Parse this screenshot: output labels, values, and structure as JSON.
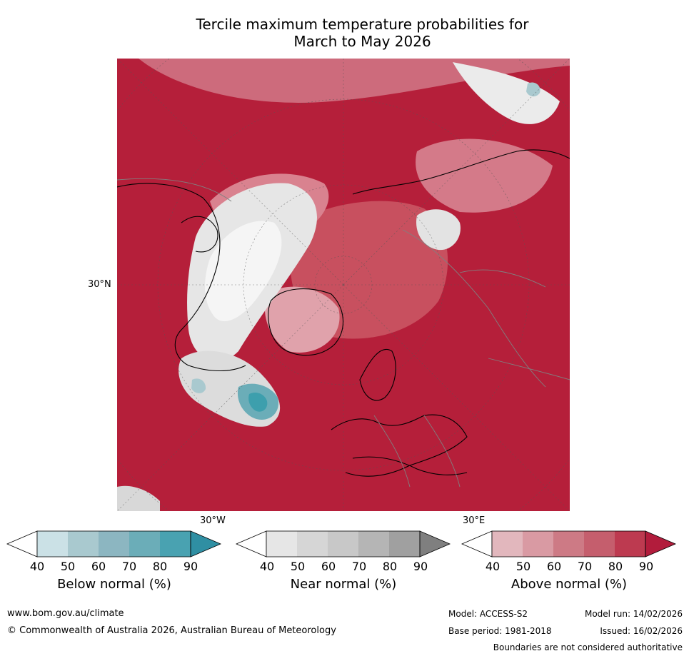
{
  "title": {
    "line1": "Tercile maximum temperature probabilities for",
    "line2": "March to May 2026"
  },
  "map": {
    "projection": "north-polar-stereographic",
    "labels": {
      "lat_30n": "30°N",
      "lon_30w": "30°W",
      "lon_30e": "30°E"
    },
    "colors": {
      "above_strong": "#b51f3a",
      "above_mid": "#c84a60",
      "above_light": "#d9828f",
      "near": "#e0e0e0",
      "below": "#3d9fad"
    }
  },
  "colorbars": [
    {
      "title": "Below normal (%)",
      "ticks": [
        "40",
        "50",
        "60",
        "70",
        "80",
        "90"
      ],
      "colors": [
        "#ffffff",
        "#cbe1e6",
        "#a9c9cf",
        "#8cb6c1",
        "#6badb8",
        "#49a2b1",
        "#2f8fa3"
      ]
    },
    {
      "title": "Near normal (%)",
      "ticks": [
        "40",
        "50",
        "60",
        "70",
        "80",
        "90"
      ],
      "colors": [
        "#ffffff",
        "#e6e6e6",
        "#d6d6d6",
        "#c8c8c8",
        "#b5b5b5",
        "#a0a0a0",
        "#7f7f7f"
      ]
    },
    {
      "title": "Above normal (%)",
      "ticks": [
        "40",
        "50",
        "60",
        "70",
        "80",
        "90"
      ],
      "colors": [
        "#ffffff",
        "#e2b7bd",
        "#d99aa3",
        "#cd7a85",
        "#c55e6d",
        "#bd3a50",
        "#b21c3c"
      ]
    }
  ],
  "footer": {
    "url": "www.bom.gov.au/climate",
    "copyright": "© Commonwealth of Australia 2026, Australian Bureau of Meteorology",
    "model": "Model: ACCESS-S2",
    "model_run": "Model run: 14/02/2026",
    "base_period": "Base period: 1981-2018",
    "issued": "Issued: 16/02/2026",
    "disclaimer": "Boundaries are not considered authoritative"
  }
}
